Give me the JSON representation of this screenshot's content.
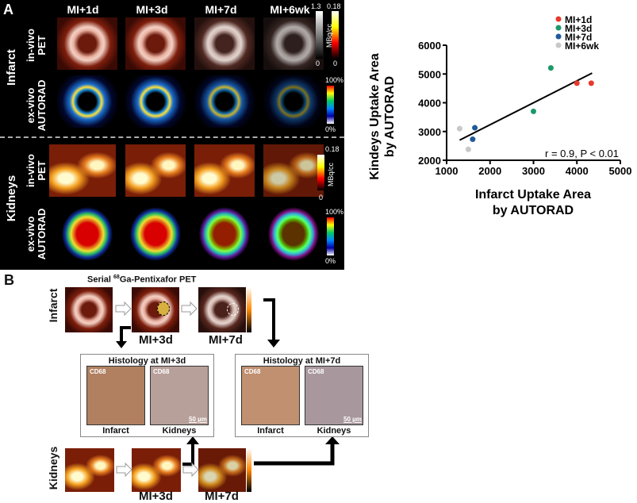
{
  "panel_a": {
    "label": "A",
    "columns": [
      "MI+1d",
      "MI+3d",
      "MI+7d",
      "MI+6wk"
    ],
    "rows": [
      {
        "group": "Infarct",
        "modality": "in-vivo PET"
      },
      {
        "group": "Infarct",
        "modality": "ex-vivo AUTORAD"
      },
      {
        "group": "Kidneys",
        "modality": "in-vivo PET"
      },
      {
        "group": "Kidneys",
        "modality": "ex-vivo AUTORAD"
      }
    ],
    "groups": [
      "Infarct",
      "Kidneys"
    ],
    "infarct_pet_scale": {
      "max_left": "1.3",
      "max_right": "0.18",
      "min_left": "0",
      "min_right": "0",
      "unit": "MBq/cc"
    },
    "autorad_scale": {
      "max": "100%",
      "min": "0%"
    },
    "kidney_pet_scale": {
      "max": "0.18",
      "min": "0",
      "unit": "MBq/cc"
    }
  },
  "chart_data": {
    "type": "scatter",
    "xlabel": "Infarct Uptake Area by AUTORAD",
    "ylabel": "Kindeys Uptake Area by AUTORAD",
    "xlabel_lines": [
      "Infarct Uptake Area",
      "by AUTORAD"
    ],
    "ylabel_lines": [
      "Kindeys Uptake Area",
      "by AUTORAD"
    ],
    "xlim": [
      1000,
      5000
    ],
    "ylim": [
      2000,
      6000
    ],
    "xticks": [
      "1000",
      "2000",
      "3000",
      "4000",
      "5000"
    ],
    "yticks": [
      "2000",
      "3000",
      "4000",
      "5000",
      "6000"
    ],
    "legend_position": "top-right",
    "series": [
      {
        "name": "MI+1d",
        "color": "#e8392b",
        "points": [
          [
            4000,
            4680
          ],
          [
            4330,
            4680
          ]
        ]
      },
      {
        "name": "MI+3d",
        "color": "#1a9a6a",
        "points": [
          [
            3000,
            3700
          ],
          [
            3400,
            5210
          ]
        ]
      },
      {
        "name": "MI+7d",
        "color": "#1f5a9a",
        "points": [
          [
            1600,
            2730
          ],
          [
            1650,
            3130
          ]
        ]
      },
      {
        "name": "MI+6wk",
        "color": "#c8c8c8",
        "points": [
          [
            1300,
            3100
          ],
          [
            1500,
            2380
          ]
        ]
      }
    ],
    "fit_line": [
      [
        1300,
        2700
      ],
      [
        4350,
        5030
      ]
    ],
    "annotation": "r = 0.9, P < 0.01",
    "grid": false
  },
  "panel_b": {
    "label": "B",
    "title_prefix": "Serial ",
    "title_sup": "68",
    "title_rest": "Ga-Pentixafor PET",
    "infarct_label": "Infarct",
    "kidneys_label": "Kidneys",
    "timepoints": [
      "MI+3d",
      "MI+7d"
    ],
    "histology": [
      {
        "title": "Histology at MI+3d",
        "stain": "CD68",
        "labels": [
          "Infarct",
          "Kidneys"
        ],
        "scale": "50 µm"
      },
      {
        "title": "Histology at MI+7d",
        "stain": "CD68",
        "labels": [
          "Infarct",
          "Kidneys"
        ],
        "scale": "50 µm"
      }
    ]
  }
}
